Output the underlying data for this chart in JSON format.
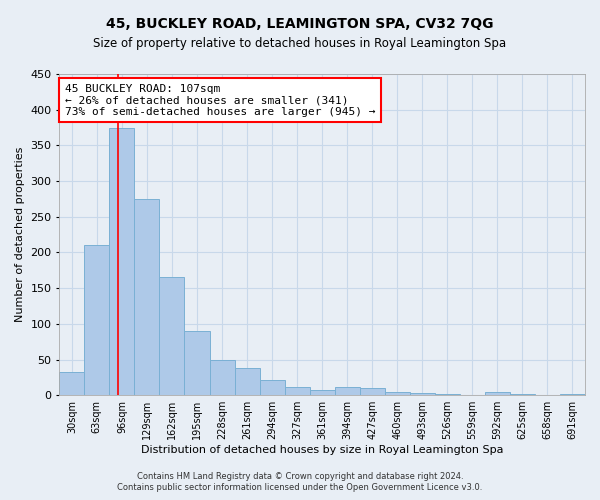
{
  "title": "45, BUCKLEY ROAD, LEAMINGTON SPA, CV32 7QG",
  "subtitle": "Size of property relative to detached houses in Royal Leamington Spa",
  "xlabel": "Distribution of detached houses by size in Royal Leamington Spa",
  "ylabel": "Number of detached properties",
  "footnote1": "Contains HM Land Registry data © Crown copyright and database right 2024.",
  "footnote2": "Contains public sector information licensed under the Open Government Licence v3.0.",
  "categories": [
    "30sqm",
    "63sqm",
    "96sqm",
    "129sqm",
    "162sqm",
    "195sqm",
    "228sqm",
    "261sqm",
    "294sqm",
    "327sqm",
    "361sqm",
    "394sqm",
    "427sqm",
    "460sqm",
    "493sqm",
    "526sqm",
    "559sqm",
    "592sqm",
    "625sqm",
    "658sqm",
    "691sqm"
  ],
  "values": [
    32,
    210,
    375,
    275,
    165,
    90,
    50,
    38,
    22,
    11,
    7,
    11,
    10,
    5,
    3,
    2,
    0,
    4,
    1,
    0,
    2
  ],
  "bar_color": "#aec9e8",
  "bar_edge_color": "#7ab0d4",
  "grid_color": "#c8d8ea",
  "bg_color": "#e8eef5",
  "plot_bg_color": "#e8eef5",
  "marker_line_color": "red",
  "annotation_text_line1": "45 BUCKLEY ROAD: 107sqm",
  "annotation_text_line2": "← 26% of detached houses are smaller (341)",
  "annotation_text_line3": "73% of semi-detached houses are larger (945) →",
  "annotation_box_color": "white",
  "annotation_border_color": "red",
  "ylim": [
    0,
    450
  ],
  "yticks": [
    0,
    50,
    100,
    150,
    200,
    250,
    300,
    350,
    400,
    450
  ],
  "title_fontsize": 10,
  "subtitle_fontsize": 8.5,
  "ylabel_fontsize": 8,
  "xlabel_fontsize": 8,
  "annotation_fontsize": 8,
  "tick_fontsize": 7,
  "footnote_fontsize": 6
}
